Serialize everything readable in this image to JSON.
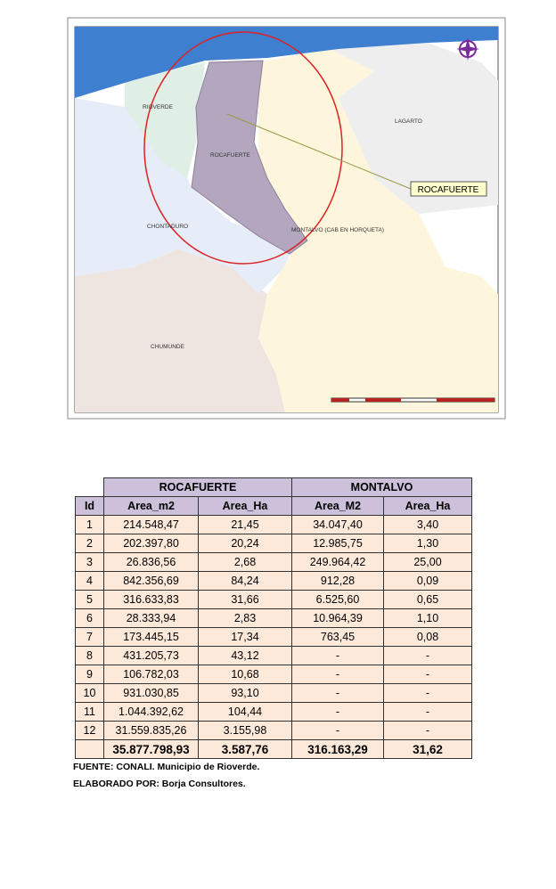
{
  "map": {
    "labels": {
      "rioverde": "RIOVERDE",
      "lagarto": "LAGARTO",
      "rocafuerte": "ROCAFUERTE",
      "chontaduro": "CHONTADURO",
      "montalvo": "MONTALVO (CAB EN HORQUETA)",
      "chumunde": "CHUMUNDE"
    },
    "callout": "ROCAFUERTE"
  },
  "table": {
    "groups": [
      "ROCAFUERTE",
      "MONTALVO"
    ],
    "columns": [
      "Id",
      "Area_m2",
      "Area_Ha",
      "Area_M2",
      "Area_Ha"
    ],
    "rows": [
      [
        "1",
        "214.548,47",
        "21,45",
        "34.047,40",
        "3,40"
      ],
      [
        "2",
        "202.397,80",
        "20,24",
        "12.985,75",
        "1,30"
      ],
      [
        "3",
        "26.836,56",
        "2,68",
        "249.964,42",
        "25,00"
      ],
      [
        "4",
        "842.356,69",
        "84,24",
        "912,28",
        "0,09"
      ],
      [
        "5",
        "316.633,83",
        "31,66",
        "6.525,60",
        "0,65"
      ],
      [
        "6",
        "28.333,94",
        "2,83",
        "10.964,39",
        "1,10"
      ],
      [
        "7",
        "173.445,15",
        "17,34",
        "763,45",
        "0,08"
      ],
      [
        "8",
        "431.205,73",
        "43,12",
        "-",
        "-"
      ],
      [
        "9",
        "106.782,03",
        "10,68",
        "-",
        "-"
      ],
      [
        "10",
        "931.030,85",
        "93,10",
        "-",
        "-"
      ],
      [
        "11",
        "1.044.392,62",
        "104,44",
        "-",
        "-"
      ],
      [
        "12",
        "31.559.835,26",
        "3.155,98",
        "-",
        "-"
      ]
    ],
    "total": [
      "35.877.798,93",
      "3.587,76",
      "316.163,29",
      "31,62"
    ]
  },
  "notes": [
    "FUENTE: CONALI. Municipio de Rioverde.",
    "ELABORADO POR: Borja Consultores."
  ]
}
